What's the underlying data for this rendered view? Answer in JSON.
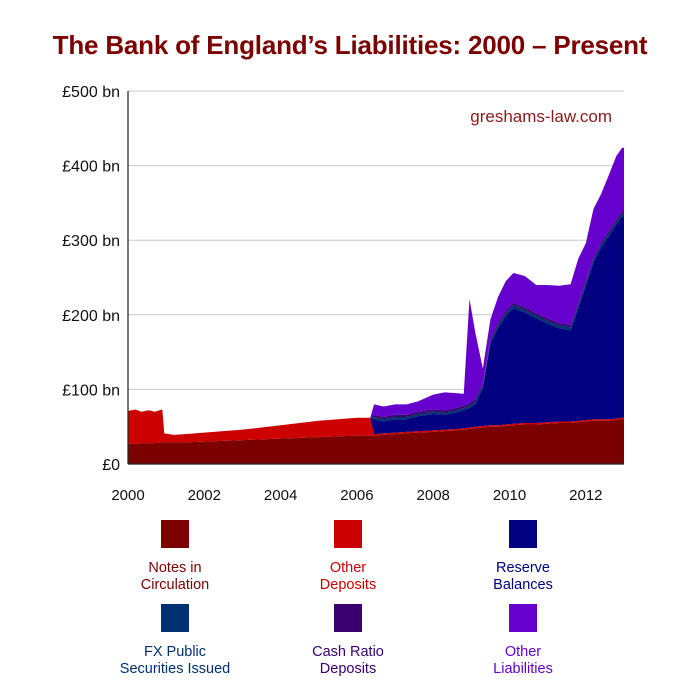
{
  "title": "The Bank of England’s Liabilities: 2000 – Present",
  "watermark": "greshams-law.com",
  "colors": {
    "title": "#7b0000",
    "watermark": "#8b1a1a",
    "notes": "#7b0000",
    "other_deposits": "#cc0000",
    "reserve": "#000080",
    "fx": "#003070",
    "cash_ratio": "#3a0070",
    "other_liabilities": "#6600cc"
  },
  "chart_data": {
    "type": "area",
    "stacked": true,
    "title": "The Bank of England’s Liabilities: 2000 – Present",
    "xlabel": "",
    "ylabel": "",
    "ylim": [
      0,
      500
    ],
    "xlim": [
      2000,
      2013
    ],
    "y_ticks": [
      0,
      100,
      200,
      300,
      400,
      500
    ],
    "y_tick_labels": [
      "£0",
      "£100 bn",
      "£200 bn",
      "£300 bn",
      "£400 bn",
      "£500 bn"
    ],
    "x_ticks": [
      2000,
      2002,
      2004,
      2006,
      2008,
      2010,
      2012
    ],
    "x_tick_labels": [
      "2000",
      "2002",
      "2004",
      "2006",
      "2008",
      "2010",
      "2012"
    ],
    "grid": "horizontal",
    "legend_position": "bottom",
    "x": [
      2000.0,
      2000.2,
      2000.35,
      2000.55,
      2000.7,
      2000.9,
      2000.95,
      2001.2,
      2001.5,
      2002.0,
      2002.5,
      2003.0,
      2003.5,
      2004.0,
      2004.5,
      2005.0,
      2005.5,
      2006.0,
      2006.35,
      2006.45,
      2006.7,
      2007.0,
      2007.3,
      2007.6,
      2008.0,
      2008.3,
      2008.6,
      2008.8,
      2008.95,
      2009.1,
      2009.3,
      2009.5,
      2009.7,
      2009.9,
      2010.1,
      2010.4,
      2010.7,
      2011.0,
      2011.3,
      2011.6,
      2011.8,
      2012.0,
      2012.2,
      2012.4,
      2012.6,
      2012.8,
      2012.95,
      2013.0
    ],
    "series": [
      {
        "name": "Notes in Circulation",
        "color": "#7b0000",
        "values": [
          27,
          27,
          28,
          28,
          28,
          29,
          29,
          29,
          29,
          30,
          31,
          32,
          33,
          34,
          35,
          36,
          37,
          38,
          38,
          38,
          39,
          40,
          41,
          42,
          43,
          44,
          45,
          46,
          47,
          48,
          49,
          50,
          50,
          51,
          52,
          53,
          53,
          54,
          55,
          55,
          56,
          57,
          58,
          58,
          58,
          59,
          60,
          60
        ]
      },
      {
        "name": "Other Deposits",
        "color": "#cc0000",
        "values": [
          44,
          46,
          42,
          44,
          42,
          44,
          12,
          10,
          11,
          12,
          13,
          14,
          16,
          18,
          20,
          22,
          23,
          24,
          24,
          2,
          2,
          2,
          2,
          2,
          2,
          2,
          2,
          2,
          2,
          2,
          2,
          2,
          2,
          2,
          2,
          2,
          2,
          2,
          2,
          2,
          2,
          2,
          2,
          2,
          2,
          2,
          2,
          2
        ]
      },
      {
        "name": "Reserve Balances",
        "color": "#000080",
        "values": [
          0,
          0,
          0,
          0,
          0,
          0,
          0,
          0,
          0,
          0,
          0,
          0,
          0,
          0,
          0,
          0,
          0,
          0,
          0,
          20,
          16,
          18,
          17,
          20,
          22,
          20,
          22,
          24,
          26,
          30,
          50,
          110,
          130,
          145,
          155,
          148,
          140,
          132,
          125,
          122,
          150,
          180,
          210,
          230,
          245,
          260,
          270,
          270
        ]
      },
      {
        "name": "FX Public Securities Issued",
        "color": "#003070",
        "values": [
          0,
          0,
          0,
          0,
          0,
          0,
          0,
          0,
          0,
          0,
          0,
          0,
          0,
          0,
          0,
          0,
          0,
          0,
          0,
          3,
          3,
          3,
          3,
          3,
          3,
          3,
          3,
          3,
          3,
          4,
          4,
          4,
          4,
          4,
          4,
          4,
          4,
          4,
          4,
          4,
          4,
          4,
          4,
          4,
          4,
          4,
          4,
          4
        ]
      },
      {
        "name": "Cash Ratio Deposits",
        "color": "#3a0070",
        "values": [
          0,
          0,
          0,
          0,
          0,
          0,
          0,
          0,
          0,
          0,
          0,
          0,
          0,
          0,
          0,
          0,
          0,
          0,
          0,
          3,
          3,
          3,
          3,
          3,
          3,
          3,
          3,
          3,
          3,
          3,
          3,
          3,
          3,
          3,
          3,
          3,
          3,
          3,
          3,
          3,
          3,
          3,
          3,
          3,
          3,
          3,
          3,
          3
        ]
      },
      {
        "name": "Other Liabilities",
        "color": "#6600cc",
        "values": [
          0,
          0,
          0,
          0,
          0,
          0,
          0,
          0,
          0,
          0,
          0,
          0,
          0,
          0,
          0,
          0,
          0,
          0,
          0,
          14,
          14,
          14,
          14,
          14,
          20,
          24,
          20,
          16,
          140,
          90,
          20,
          25,
          35,
          40,
          40,
          42,
          38,
          45,
          50,
          55,
          60,
          50,
          65,
          65,
          75,
          85,
          85,
          85
        ]
      }
    ]
  },
  "legend": [
    {
      "label1": "Notes in",
      "label2": "Circulation",
      "swatch": "#7b0000",
      "text": "#7b0000"
    },
    {
      "label1": "Other",
      "label2": "Deposits",
      "swatch": "#cc0000",
      "text": "#cc0000"
    },
    {
      "label1": "Reserve",
      "label2": "Balances",
      "swatch": "#000080",
      "text": "#000080"
    },
    {
      "label1": "FX Public",
      "label2": "Securities Issued",
      "swatch": "#003070",
      "text": "#003070"
    },
    {
      "label1": "Cash Ratio",
      "label2": "Deposits",
      "swatch": "#3a0070",
      "text": "#3a0070"
    },
    {
      "label1": "Other",
      "label2": "Liabilities",
      "swatch": "#6600cc",
      "text": "#6600cc"
    }
  ]
}
